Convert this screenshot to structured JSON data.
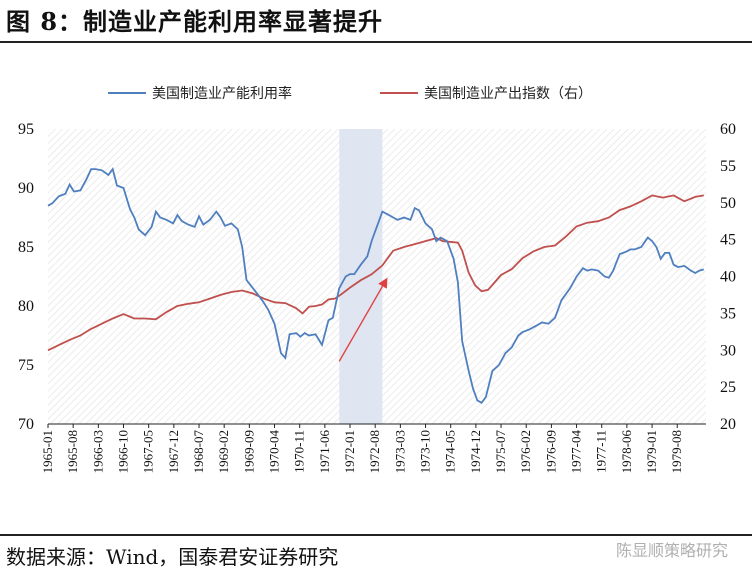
{
  "figure_title": "图 8：制造业产能利用率显著提升",
  "source_note": "数据来源：Wind，国泰君安证券研究",
  "watermark": "陈显顺策略研究",
  "chart_data": {
    "type": "line",
    "title": "",
    "legend_placement": "top",
    "grid": false,
    "y_left": {
      "min": 70,
      "max": 95,
      "ticks": [
        70,
        75,
        80,
        85,
        90,
        95
      ]
    },
    "y_right": {
      "min": 20,
      "max": 60,
      "ticks": [
        20,
        25,
        30,
        35,
        40,
        45,
        50,
        55,
        60
      ]
    },
    "x_range": [
      1965.0,
      1980.25
    ],
    "x_tick_labels": [
      "1965-01",
      "1965-08",
      "1966-03",
      "1966-10",
      "1967-05",
      "1967-12",
      "1968-07",
      "1969-02",
      "1969-09",
      "1970-04",
      "1970-11",
      "1971-06",
      "1972-01",
      "1972-08",
      "1973-03",
      "1973-10",
      "1974-05",
      "1974-12",
      "1975-07",
      "1976-02",
      "1976-09",
      "1977-04",
      "1977-11",
      "1978-06",
      "1979-01",
      "1979-08"
    ],
    "highlight_period": [
      "1971-10",
      "1972-10"
    ],
    "annotation_arrow": {
      "from": [
        "1971-10",
        28.5
      ],
      "to": [
        "1972-11",
        39.5
      ],
      "axis": "right"
    },
    "colors": {
      "capacity": "#4f7fbf",
      "output": "#c0504d",
      "highlight": "#dbe3f1",
      "arrow": "#e04040"
    },
    "series": [
      {
        "name": "美国制造业产能利用率",
        "axis": "left",
        "color": "#4f7fbf",
        "x": [
          1965.0,
          1965.1,
          1965.25,
          1965.4,
          1965.5,
          1965.6,
          1965.75,
          1965.9,
          1966.0,
          1966.1,
          1966.25,
          1966.4,
          1966.5,
          1966.6,
          1966.75,
          1966.9,
          1967.0,
          1967.1,
          1967.25,
          1967.4,
          1967.5,
          1967.6,
          1967.75,
          1967.9,
          1968.0,
          1968.1,
          1968.25,
          1968.4,
          1968.5,
          1968.6,
          1968.75,
          1968.9,
          1969.0,
          1969.1,
          1969.25,
          1969.4,
          1969.5,
          1969.6,
          1969.75,
          1969.9,
          1970.0,
          1970.1,
          1970.25,
          1970.4,
          1970.5,
          1970.6,
          1970.75,
          1970.85,
          1970.95,
          1971.05,
          1971.2,
          1971.35,
          1971.5,
          1971.6,
          1971.75,
          1971.9,
          1972.0,
          1972.1,
          1972.25,
          1972.4,
          1972.5,
          1972.6,
          1972.75,
          1972.9,
          1973.0,
          1973.1,
          1973.25,
          1973.4,
          1973.5,
          1973.6,
          1973.75,
          1973.9,
          1974.0,
          1974.1,
          1974.25,
          1974.4,
          1974.5,
          1974.6,
          1974.75,
          1974.85,
          1974.95,
          1975.05,
          1975.15,
          1975.3,
          1975.45,
          1975.6,
          1975.75,
          1975.9,
          1976.0,
          1976.15,
          1976.3,
          1976.45,
          1976.6,
          1976.75,
          1976.9,
          1977.0,
          1977.1,
          1977.25,
          1977.4,
          1977.5,
          1977.6,
          1977.75,
          1977.9,
          1978.0,
          1978.1,
          1978.25,
          1978.4,
          1978.5,
          1978.6,
          1978.75,
          1978.9,
          1979.0,
          1979.1,
          1979.2,
          1979.3,
          1979.4,
          1979.5,
          1979.6,
          1979.75,
          1979.9,
          1980.0,
          1980.1,
          1980.2
        ],
        "values": [
          88.5,
          88.7,
          89.3,
          89.5,
          90.3,
          89.7,
          89.8,
          90.8,
          91.6,
          91.6,
          91.5,
          91.1,
          91.6,
          90.2,
          90.0,
          88.2,
          87.5,
          86.5,
          86.0,
          86.7,
          88.0,
          87.5,
          87.3,
          87.0,
          87.7,
          87.2,
          86.9,
          86.7,
          87.6,
          86.9,
          87.3,
          88.0,
          87.5,
          86.8,
          87.0,
          86.5,
          85.0,
          82.2,
          81.5,
          80.8,
          80.3,
          79.7,
          78.5,
          76.0,
          75.6,
          77.6,
          77.7,
          77.4,
          77.7,
          77.5,
          77.6,
          76.7,
          78.8,
          79.0,
          81.5,
          82.5,
          82.7,
          82.7,
          83.5,
          84.2,
          85.5,
          86.5,
          88.0,
          87.7,
          87.5,
          87.3,
          87.5,
          87.3,
          88.3,
          88.1,
          87.0,
          86.5,
          85.5,
          85.8,
          85.5,
          84.0,
          82.0,
          77.0,
          74.5,
          73.0,
          72.0,
          71.8,
          72.3,
          74.5,
          75.0,
          76.0,
          76.5,
          77.5,
          77.8,
          78.0,
          78.3,
          78.6,
          78.5,
          79.0,
          80.5,
          81.0,
          81.5,
          82.5,
          83.2,
          83.0,
          83.1,
          83.0,
          82.5,
          82.4,
          83.0,
          84.4,
          84.6,
          84.8,
          84.8,
          85.0,
          85.8,
          85.5,
          85.0,
          84.0,
          84.5,
          84.5,
          83.5,
          83.3,
          83.4,
          83.0,
          82.8,
          83.0,
          83.1
        ]
      },
      {
        "name": "美国制造业产出指数（右）",
        "axis": "right",
        "color": "#c0504d",
        "x": [
          1965.0,
          1965.25,
          1965.5,
          1965.75,
          1966.0,
          1966.25,
          1966.5,
          1966.75,
          1967.0,
          1967.25,
          1967.5,
          1967.75,
          1968.0,
          1968.25,
          1968.5,
          1968.75,
          1969.0,
          1969.25,
          1969.5,
          1969.75,
          1970.0,
          1970.25,
          1970.5,
          1970.75,
          1970.9,
          1971.05,
          1971.2,
          1971.35,
          1971.5,
          1971.65,
          1971.8,
          1972.0,
          1972.25,
          1972.5,
          1972.75,
          1973.0,
          1973.25,
          1973.5,
          1973.75,
          1974.0,
          1974.15,
          1974.3,
          1974.5,
          1974.6,
          1974.75,
          1974.9,
          1975.05,
          1975.2,
          1975.35,
          1975.5,
          1975.75,
          1976.0,
          1976.25,
          1976.5,
          1976.75,
          1977.0,
          1977.25,
          1977.5,
          1977.75,
          1978.0,
          1978.25,
          1978.5,
          1978.75,
          1979.0,
          1979.25,
          1979.5,
          1979.75,
          1980.0,
          1980.2
        ],
        "values": [
          30.0,
          30.7,
          31.4,
          32.0,
          32.9,
          33.6,
          34.3,
          34.9,
          34.3,
          34.3,
          34.2,
          35.2,
          36.0,
          36.3,
          36.5,
          37.0,
          37.5,
          37.9,
          38.1,
          37.7,
          37.0,
          36.5,
          36.4,
          35.7,
          35.0,
          35.9,
          36.0,
          36.2,
          36.9,
          37.0,
          37.6,
          38.5,
          39.5,
          40.3,
          41.5,
          43.5,
          44.0,
          44.4,
          44.8,
          45.2,
          44.8,
          44.7,
          44.6,
          43.5,
          40.5,
          38.8,
          38.0,
          38.2,
          39.2,
          40.2,
          41.0,
          42.5,
          43.4,
          44.0,
          44.2,
          45.4,
          46.8,
          47.3,
          47.5,
          48.0,
          49.0,
          49.5,
          50.2,
          51.0,
          50.7,
          51.0,
          50.2,
          50.8,
          51.0
        ]
      }
    ]
  }
}
